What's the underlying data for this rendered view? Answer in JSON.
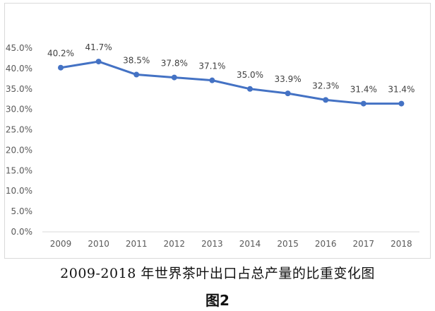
{
  "caption": "2009-2018 年世界茶叶出口占总产量的比重变化图",
  "figure_label": "图2",
  "chart_data": {
    "type": "line",
    "title": "",
    "xlabel": "",
    "ylabel": "",
    "categories": [
      "2009",
      "2010",
      "2011",
      "2012",
      "2013",
      "2014",
      "2015",
      "2016",
      "2017",
      "2018"
    ],
    "series": [
      {
        "values": [
          40.2,
          41.7,
          38.5,
          37.8,
          37.1,
          35.0,
          33.9,
          32.3,
          31.4,
          31.4
        ],
        "data_labels": [
          "40.2%",
          "41.7%",
          "38.5%",
          "37.8%",
          "37.1%",
          "35.0%",
          "33.9%",
          "32.3%",
          "31.4%",
          "31.4%"
        ],
        "color": "#4472c4"
      }
    ],
    "y_ticks": [
      "0.0%",
      "5.0%",
      "10.0%",
      "15.0%",
      "20.0%",
      "25.0%",
      "30.0%",
      "35.0%",
      "40.0%",
      "45.0%"
    ],
    "ylim": [
      0,
      45
    ],
    "grid": false,
    "legend": "none"
  }
}
